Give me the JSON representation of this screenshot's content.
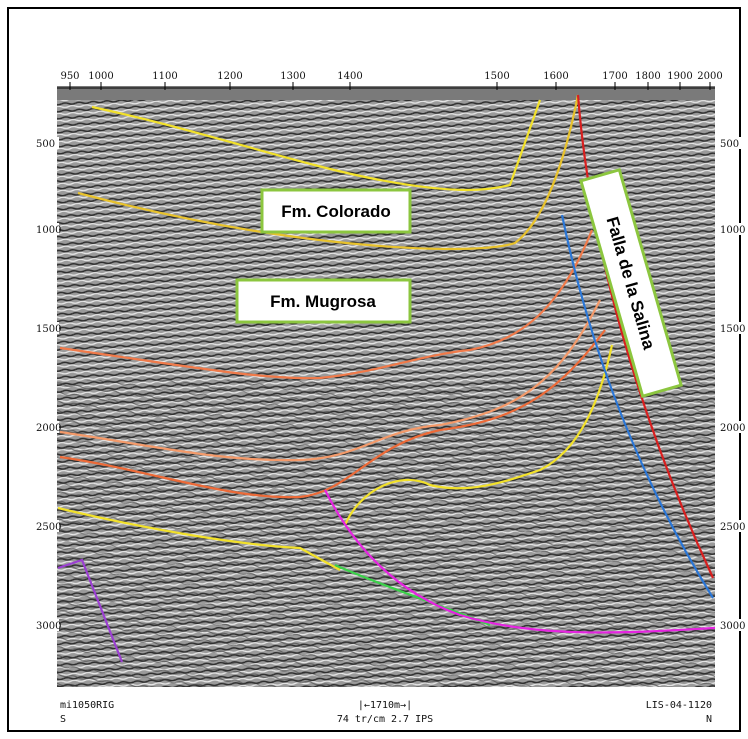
{
  "top_axis": {
    "ticks": [
      "950",
      "1000",
      "1100",
      "1200",
      "1300",
      "1400",
      "1500",
      "1600",
      "1700",
      "1800",
      "1900",
      "2000"
    ]
  },
  "left_axis": {
    "ticks": [
      "500",
      "1000",
      "1500",
      "2000",
      "2500",
      "3000"
    ]
  },
  "right_axis": {
    "ticks": [
      "500",
      "1000",
      "1500",
      "2000",
      "2500",
      "3000"
    ]
  },
  "labels": {
    "colorado": "Fm. Colorado",
    "mugrosa": "Fm. Mugrosa",
    "fault": "Falla de la Salina"
  },
  "footer": {
    "left_top": "mi1050RIG",
    "left_bottom": "S",
    "center_top": "|←1710m→|",
    "center_bottom": "74 tr/cm 2.7 IPS",
    "right_top": "LIS-04-1120",
    "right_bottom": "N"
  }
}
